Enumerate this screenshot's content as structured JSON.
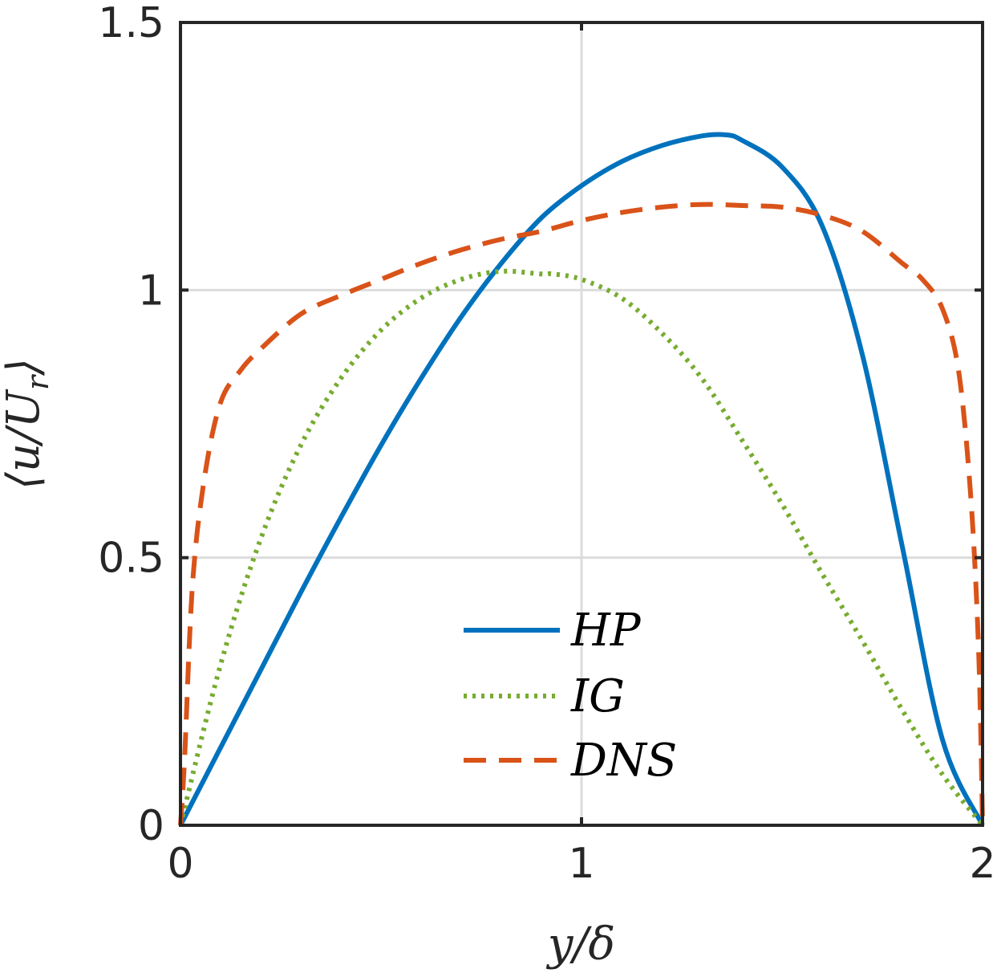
{
  "chart_data": {
    "type": "line",
    "title": "",
    "xlabel": "y/δ",
    "ylabel": "⟨u/U_r⟩",
    "ylabel_main": "⟨u/U",
    "ylabel_sub": "r",
    "ylabel_close": "⟩",
    "xlim": [
      0,
      2
    ],
    "ylim": [
      0,
      1.5
    ],
    "xticks": [
      0,
      1,
      2
    ],
    "xtick_labels": [
      "0",
      "1",
      "2"
    ],
    "yticks": [
      0,
      0.5,
      1,
      1.5
    ],
    "ytick_labels": [
      "0",
      "0.5",
      "1",
      "1.5"
    ],
    "grid": true,
    "legend_position": "bottom-center",
    "series": [
      {
        "name": "HP",
        "style": "solid",
        "color": "#0072BD",
        "x": [
          0,
          0.1,
          0.2,
          0.3,
          0.4,
          0.5,
          0.6,
          0.7,
          0.8,
          0.9,
          1.0,
          1.1,
          1.2,
          1.3,
          1.36,
          1.4,
          1.5,
          1.6,
          1.7,
          1.8,
          1.9,
          2.0
        ],
        "y": [
          0,
          0.145,
          0.29,
          0.435,
          0.575,
          0.71,
          0.835,
          0.95,
          1.05,
          1.135,
          1.195,
          1.24,
          1.27,
          1.288,
          1.29,
          1.28,
          1.23,
          1.12,
          0.88,
          0.52,
          0.16,
          0
        ]
      },
      {
        "name": "IG",
        "style": "dotted",
        "color": "#77AC30",
        "x": [
          0,
          0.1,
          0.2,
          0.3,
          0.4,
          0.5,
          0.6,
          0.7,
          0.8,
          0.9,
          0.93,
          1.0,
          1.1,
          1.2,
          1.3,
          1.4,
          1.5,
          1.6,
          1.7,
          1.8,
          1.9,
          2.0
        ],
        "y": [
          0,
          0.3,
          0.535,
          0.71,
          0.835,
          0.925,
          0.985,
          1.02,
          1.035,
          1.03,
          1.03,
          1.02,
          0.985,
          0.92,
          0.835,
          0.72,
          0.6,
          0.47,
          0.345,
          0.215,
          0.095,
          0
        ]
      },
      {
        "name": "DNS",
        "style": "dashed",
        "color": "#D95319",
        "x": [
          0,
          0.01,
          0.03,
          0.06,
          0.1,
          0.15,
          0.2,
          0.3,
          0.4,
          0.5,
          0.6,
          0.7,
          0.8,
          0.9,
          1.0,
          1.1,
          1.2,
          1.3,
          1.4,
          1.5,
          1.6,
          1.7,
          1.8,
          1.85,
          1.9,
          1.94,
          1.97,
          1.99,
          2.0
        ],
        "y": [
          0,
          0.12,
          0.45,
          0.65,
          0.79,
          0.85,
          0.89,
          0.955,
          0.99,
          1.02,
          1.05,
          1.075,
          1.095,
          1.11,
          1.13,
          1.145,
          1.155,
          1.16,
          1.158,
          1.155,
          1.14,
          1.11,
          1.05,
          1.02,
          0.965,
          0.85,
          0.62,
          0.33,
          0
        ]
      }
    ]
  }
}
